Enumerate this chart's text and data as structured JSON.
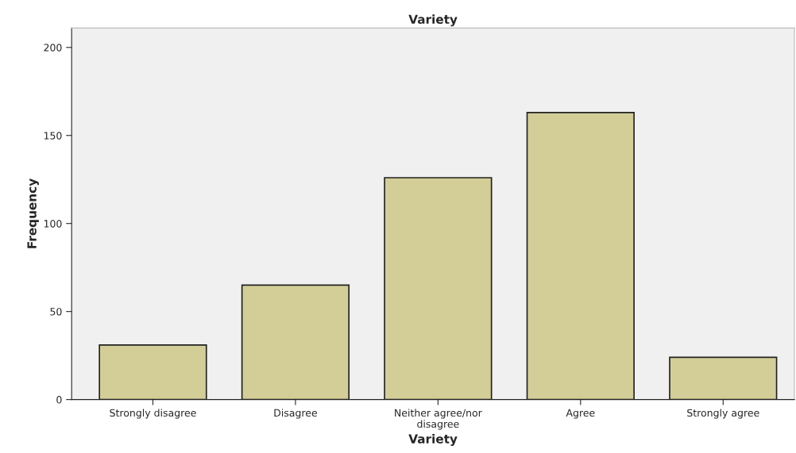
{
  "chart_data": {
    "type": "bar",
    "title": "Variety",
    "xlabel": "Variety",
    "ylabel": "Frequency",
    "categories": [
      "Strongly disagree",
      "Disagree",
      "Neither agree/nor\ndisagree",
      "Agree",
      "Strongly agree"
    ],
    "values": [
      31,
      65,
      126,
      163,
      24
    ],
    "color": "#d3ce97",
    "ylim": [
      0,
      211
    ],
    "yticks": [
      0,
      50,
      100,
      150,
      200
    ],
    "grid": false
  }
}
